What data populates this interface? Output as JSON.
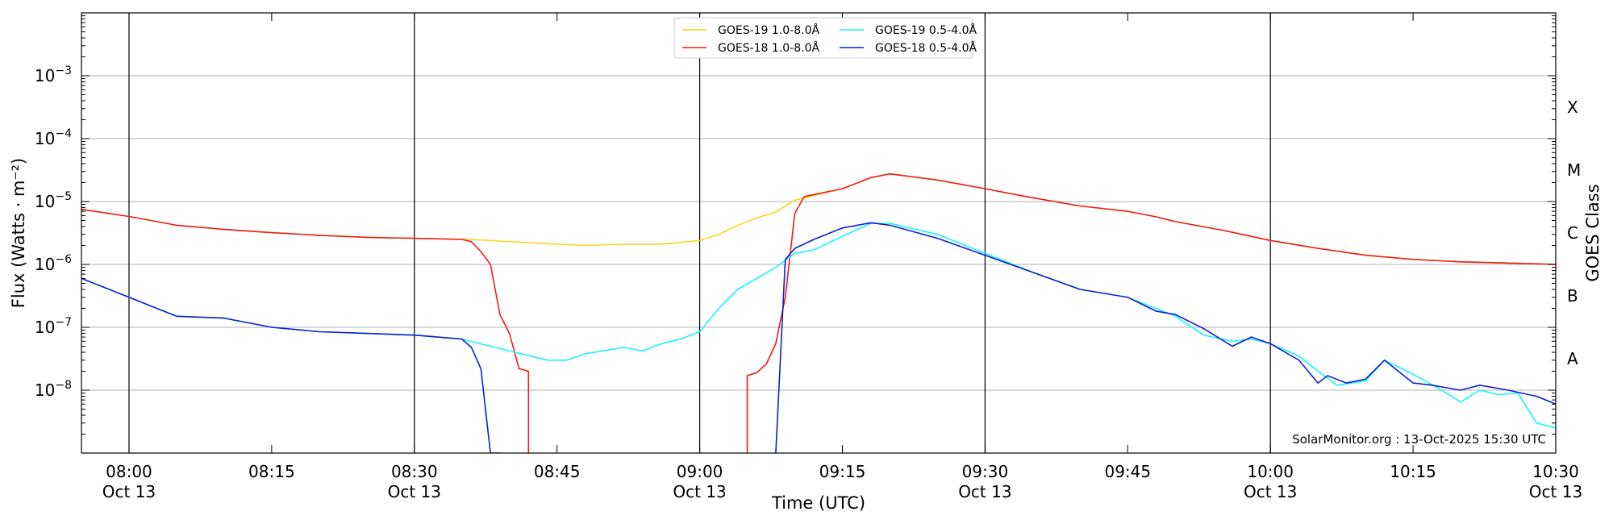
{
  "chart_data": {
    "type": "line",
    "xlabel": "Time (UTC)",
    "ylabel": "Flux (Watts · m⁻²)",
    "y2label": "GOES Class",
    "yscale": "log",
    "xlim": [
      "07:55",
      "10:30"
    ],
    "ylim": [
      1e-09,
      0.01
    ],
    "grid": "horizontal",
    "legend_position": "top-center",
    "credit": "SolarMonitor.org : 13-Oct-2025 15:30 UTC",
    "x_ticks": [
      {
        "time": "08:00",
        "label": "08:00",
        "sublabel": "Oct 13",
        "day_line": true
      },
      {
        "time": "08:15",
        "label": "08:15",
        "sublabel": "",
        "day_line": false
      },
      {
        "time": "08:30",
        "label": "08:30",
        "sublabel": "Oct 13",
        "day_line": true
      },
      {
        "time": "08:45",
        "label": "08:45",
        "sublabel": "",
        "day_line": false
      },
      {
        "time": "09:00",
        "label": "09:00",
        "sublabel": "Oct 13",
        "day_line": true
      },
      {
        "time": "09:15",
        "label": "09:15",
        "sublabel": "",
        "day_line": false
      },
      {
        "time": "09:30",
        "label": "09:30",
        "sublabel": "Oct 13",
        "day_line": true
      },
      {
        "time": "09:45",
        "label": "09:45",
        "sublabel": "",
        "day_line": false
      },
      {
        "time": "10:00",
        "label": "10:00",
        "sublabel": "Oct 13",
        "day_line": true
      },
      {
        "time": "10:15",
        "label": "10:15",
        "sublabel": "",
        "day_line": false
      },
      {
        "time": "10:30",
        "label": "10:30",
        "sublabel": "Oct 13",
        "day_line": true
      }
    ],
    "y_ticks": [
      {
        "exp": -8,
        "label": "10",
        "sup": "−8"
      },
      {
        "exp": -7,
        "label": "10",
        "sup": "−7"
      },
      {
        "exp": -6,
        "label": "10",
        "sup": "−6"
      },
      {
        "exp": -5,
        "label": "10",
        "sup": "−5"
      },
      {
        "exp": -4,
        "label": "10",
        "sup": "−4"
      },
      {
        "exp": -3,
        "label": "10",
        "sup": "−3"
      }
    ],
    "goes_classes": [
      {
        "label": "A",
        "exp": -7.5
      },
      {
        "label": "B",
        "exp": -6.5
      },
      {
        "label": "C",
        "exp": -5.5
      },
      {
        "label": "M",
        "exp": -4.5
      },
      {
        "label": "X",
        "exp": -3.5
      }
    ],
    "series": [
      {
        "name": "GOES-19 1.0-8.0Å",
        "color": "#ffd21f",
        "x": [
          "07:55",
          "08:00",
          "08:05",
          "08:10",
          "08:15",
          "08:20",
          "08:25",
          "08:30",
          "08:36",
          "08:40",
          "08:45",
          "08:48",
          "08:52",
          "08:56",
          "09:00",
          "09:02",
          "09:04",
          "09:06",
          "09:08",
          "09:10",
          "09:12",
          "09:15",
          "09:18",
          "09:20",
          "09:25",
          "09:30",
          "09:35",
          "09:40",
          "09:45",
          "09:48",
          "09:50",
          "09:55",
          "10:00",
          "10:05",
          "10:10",
          "10:15",
          "10:20",
          "10:25",
          "10:30"
        ],
        "values": [
          7.5e-06,
          5.8e-06,
          4.2e-06,
          3.6e-06,
          3.2e-06,
          2.9e-06,
          2.7e-06,
          2.6e-06,
          2.5e-06,
          2.3e-06,
          2.1e-06,
          2e-06,
          2.1e-06,
          2.1e-06,
          2.4e-06,
          3e-06,
          4.2e-06,
          5.5e-06,
          6.8e-06,
          1.05e-05,
          1.25e-05,
          1.6e-05,
          2.4e-05,
          2.75e-05,
          2.2e-05,
          1.6e-05,
          1.15e-05,
          8.5e-06,
          7e-06,
          5.7e-06,
          4.8e-06,
          3.5e-06,
          2.4e-06,
          1.8e-06,
          1.4e-06,
          1.2e-06,
          1.1e-06,
          1.05e-06,
          1e-06
        ]
      },
      {
        "name": "GOES-18 1.0-8.0Å",
        "color": "#ee1d17",
        "x": [
          "07:55",
          "08:00",
          "08:05",
          "08:10",
          "08:15",
          "08:20",
          "08:25",
          "08:30",
          "08:35",
          "08:36",
          "08:37",
          "08:38",
          "08:39",
          "08:40",
          "08:41",
          "08:42",
          "08:42",
          null,
          "09:05",
          "09:05",
          "09:06",
          "09:07",
          "09:08",
          "09:09",
          "09:10",
          "09:11",
          "09:15",
          "09:18",
          "09:20",
          "09:25",
          "09:30",
          "09:35",
          "09:40",
          "09:45",
          "09:48",
          "09:50",
          "09:55",
          "10:00",
          "10:05",
          "10:10",
          "10:15",
          "10:20",
          "10:25",
          "10:30"
        ],
        "values": [
          7.5e-06,
          5.8e-06,
          4.2e-06,
          3.6e-06,
          3.2e-06,
          2.9e-06,
          2.7e-06,
          2.6e-06,
          2.5e-06,
          2.3e-06,
          1.6e-06,
          1e-06,
          1.6e-07,
          8e-08,
          2.2e-08,
          2e-08,
          1e-09,
          null,
          1e-09,
          1.7e-08,
          1.9e-08,
          2.6e-08,
          5.5e-08,
          3e-07,
          6.5e-06,
          1.2e-05,
          1.6e-05,
          2.4e-05,
          2.75e-05,
          2.2e-05,
          1.6e-05,
          1.15e-05,
          8.5e-06,
          7e-06,
          5.7e-06,
          4.8e-06,
          3.5e-06,
          2.4e-06,
          1.8e-06,
          1.4e-06,
          1.2e-06,
          1.1e-06,
          1.05e-06,
          1e-06
        ]
      },
      {
        "name": "GOES-19 0.5-4.0Å",
        "color": "#18f5f5",
        "x": [
          "07:55",
          "08:00",
          "08:05",
          "08:10",
          "08:15",
          "08:20",
          "08:25",
          "08:30",
          "08:35",
          "08:38",
          "08:40",
          "08:44",
          "08:46",
          "08:48",
          "08:52",
          "08:54",
          "08:56",
          "08:58",
          "09:00",
          "09:02",
          "09:04",
          "09:06",
          "09:08",
          "09:10",
          "09:12",
          "09:15",
          "09:18",
          "09:20",
          "09:25",
          "09:30",
          "09:35",
          "09:40",
          "09:45",
          "09:50",
          "09:53",
          "09:56",
          "09:58",
          "10:00",
          "10:03",
          "10:05",
          "10:07",
          "10:10",
          "10:12",
          "10:15",
          "10:18",
          "10:20",
          "10:22",
          "10:24",
          "10:26",
          "10:28",
          "10:30"
        ],
        "values": [
          6e-07,
          3e-07,
          1.5e-07,
          1.4e-07,
          1e-07,
          8.5e-08,
          8e-08,
          7.5e-08,
          6.5e-08,
          5e-08,
          4.2e-08,
          3e-08,
          3e-08,
          3.8e-08,
          4.8e-08,
          4.2e-08,
          5.5e-08,
          6.5e-08,
          8.5e-08,
          2e-07,
          4e-07,
          6e-07,
          9e-07,
          1.5e-06,
          1.7e-06,
          2.8e-06,
          4.5e-06,
          4.5e-06,
          3e-06,
          1.5e-06,
          7.5e-07,
          4e-07,
          3e-07,
          1.5e-07,
          7.5e-08,
          6e-08,
          6.5e-08,
          5.5e-08,
          3.5e-08,
          2e-08,
          1.2e-08,
          1.4e-08,
          3e-08,
          1.8e-08,
          1e-08,
          6.5e-09,
          1e-08,
          8.5e-09,
          9e-09,
          3e-09,
          2.5e-09
        ]
      },
      {
        "name": "GOES-18 0.5-4.0Å",
        "color": "#0f1fd3",
        "x": [
          "07:55",
          "08:00",
          "08:05",
          "08:10",
          "08:15",
          "08:20",
          "08:25",
          "08:30",
          "08:35",
          "08:36",
          "08:37",
          "08:38",
          "08:39",
          "08:39",
          null,
          "09:08",
          "09:09",
          "09:10",
          "09:12",
          "09:15",
          "09:18",
          "09:20",
          "09:25",
          "09:30",
          "09:35",
          "09:40",
          "09:45",
          "09:48",
          "09:50",
          "09:53",
          "09:56",
          "09:58",
          "10:00",
          "10:03",
          "10:05",
          "10:06",
          "10:08",
          "10:10",
          "10:12",
          "10:15",
          "10:17",
          "10:20",
          "10:22",
          "10:25",
          "10:28",
          "10:30"
        ],
        "values": [
          6e-07,
          3e-07,
          1.5e-07,
          1.4e-07,
          1e-07,
          8.5e-08,
          8e-08,
          7.5e-08,
          6.5e-08,
          4.8e-08,
          2.2e-08,
          1e-09,
          1e-09,
          1e-09,
          null,
          1e-09,
          1.2e-06,
          1.8e-06,
          2.5e-06,
          3.8e-06,
          4.6e-06,
          4.2e-06,
          2.6e-06,
          1.4e-06,
          7.5e-07,
          4e-07,
          3e-07,
          1.8e-07,
          1.6e-07,
          9.5e-08,
          5e-08,
          7e-08,
          5.5e-08,
          3e-08,
          1.3e-08,
          1.7e-08,
          1.3e-08,
          1.5e-08,
          3e-08,
          1.3e-08,
          1.2e-08,
          1e-08,
          1.2e-08,
          1e-08,
          8e-09,
          6e-09
        ]
      }
    ]
  }
}
